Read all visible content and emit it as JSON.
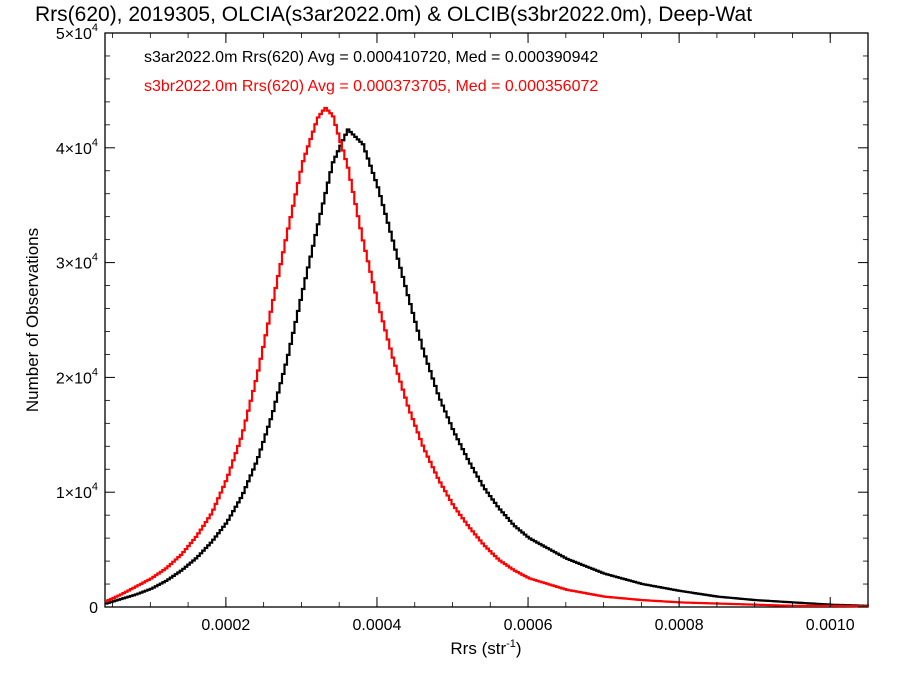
{
  "chart_data": {
    "type": "line",
    "title": "Rrs(620), 2019305, OLCIA(s3ar2022.0m) & OLCIB(s3br2022.0m), Deep-Wat",
    "xlabel": "Rrs (str",
    "xlabel_sup": "-1",
    "xlabel_close": ")",
    "ylabel": "Number of Observations",
    "xlim": [
      4e-05,
      0.00105
    ],
    "ylim": [
      0,
      50000
    ],
    "x_ticks": [
      {
        "value": 0.0002,
        "label": "0.0002"
      },
      {
        "value": 0.0004,
        "label": "0.0004"
      },
      {
        "value": 0.0006,
        "label": "0.0006"
      },
      {
        "value": 0.0008,
        "label": "0.0008"
      },
      {
        "value": 0.001,
        "label": "0.0010"
      }
    ],
    "y_ticks": [
      {
        "value": 0,
        "label": "0",
        "exp": ""
      },
      {
        "value": 10000,
        "label": "1×10",
        "exp": "4"
      },
      {
        "value": 20000,
        "label": "2×10",
        "exp": "4"
      },
      {
        "value": 30000,
        "label": "3×10",
        "exp": "4"
      },
      {
        "value": 40000,
        "label": "4×10",
        "exp": "4"
      },
      {
        "value": 50000,
        "label": "5×10",
        "exp": "4"
      }
    ],
    "step_style": "histogram",
    "grid": false,
    "legend_position": "top-left",
    "series": [
      {
        "name": "s3ar2022.0m Rrs(620) Avg = 0.000410720, Med = 0.000390942",
        "color": "#000000",
        "x": [
          4e-05,
          6e-05,
          8e-05,
          0.0001,
          0.00012,
          0.00014,
          0.00016,
          0.00018,
          0.0002,
          0.00022,
          0.00024,
          0.00026,
          0.00028,
          0.0003,
          0.00032,
          0.00034,
          0.00036,
          0.00038,
          0.0004,
          0.00042,
          0.00044,
          0.00046,
          0.00048,
          0.0005,
          0.00052,
          0.00054,
          0.00056,
          0.00058,
          0.0006,
          0.00065,
          0.0007,
          0.00075,
          0.0008,
          0.00085,
          0.0009,
          0.00095,
          0.001,
          0.00105
        ],
        "y": [
          300,
          700,
          1100,
          1600,
          2300,
          3200,
          4300,
          5700,
          7400,
          9700,
          12800,
          16800,
          21700,
          27500,
          33200,
          38700,
          41600,
          40300,
          36500,
          31800,
          27000,
          22300,
          18400,
          15300,
          12700,
          10400,
          8600,
          7100,
          6000,
          4200,
          2900,
          2000,
          1400,
          900,
          600,
          400,
          200,
          100
        ]
      },
      {
        "name": "s3br2022.0m Rrs(620) Avg = 0.000373705, Med = 0.000356072",
        "color": "#ff0000",
        "x": [
          4e-05,
          6e-05,
          8e-05,
          0.0001,
          0.00012,
          0.00014,
          0.00016,
          0.00018,
          0.0002,
          0.00022,
          0.00024,
          0.00026,
          0.00028,
          0.0003,
          0.00032,
          0.00033,
          0.00034,
          0.00036,
          0.00038,
          0.0004,
          0.00042,
          0.00044,
          0.00046,
          0.00048,
          0.0005,
          0.00052,
          0.00054,
          0.00056,
          0.00058,
          0.0006,
          0.00065,
          0.0007,
          0.00075,
          0.0008,
          0.00085,
          0.0009,
          0.00095,
          0.001,
          0.00105
        ],
        "y": [
          500,
          1100,
          1800,
          2500,
          3400,
          4600,
          6200,
          8200,
          11200,
          15000,
          20200,
          26400,
          32700,
          38700,
          42600,
          43500,
          42800,
          38300,
          31900,
          26400,
          21600,
          17400,
          13900,
          11100,
          8800,
          7000,
          5400,
          4100,
          3200,
          2500,
          1500,
          900,
          600,
          400,
          300,
          200,
          100,
          100,
          50
        ]
      }
    ]
  }
}
